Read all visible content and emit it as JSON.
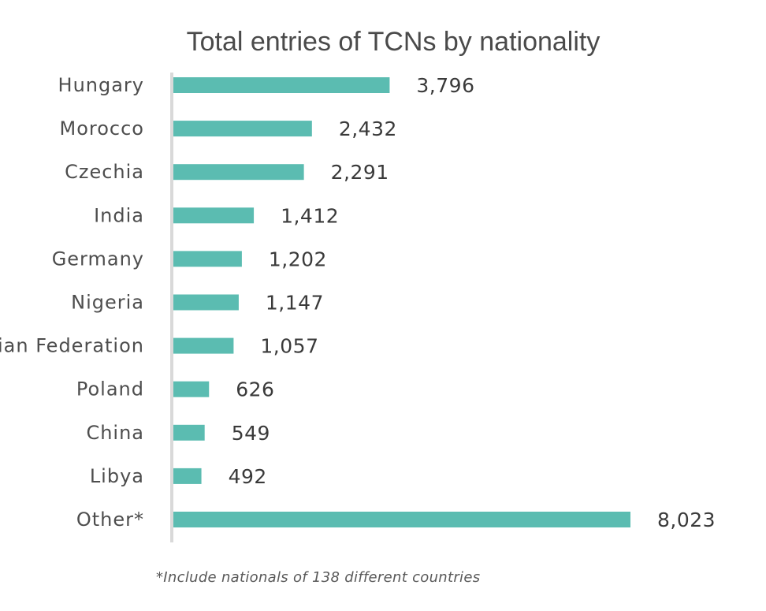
{
  "chart_data": {
    "type": "bar",
    "orientation": "horizontal",
    "title": "Total entries of TCNs by nationality",
    "categories": [
      "Hungary",
      "Morocco",
      "Czechia",
      "India",
      "Germany",
      "Nigeria",
      "Russian Federation",
      "Poland",
      "China",
      "Libya",
      "Other*"
    ],
    "values": [
      3796,
      2432,
      2291,
      1412,
      1202,
      1147,
      1057,
      626,
      549,
      492,
      8023
    ],
    "value_labels": [
      "3,796",
      "2,432",
      "2,291",
      "1,412",
      "1,202",
      "1,147",
      "1,057",
      "626",
      "549",
      "492",
      "8,023"
    ],
    "xlim": [
      0,
      8023
    ],
    "grid": false,
    "legend": "none",
    "bar_color": "#5bbcb1",
    "axis_color": "#d9d9d9",
    "footnote": "*Include nationals of 138 different countries"
  }
}
